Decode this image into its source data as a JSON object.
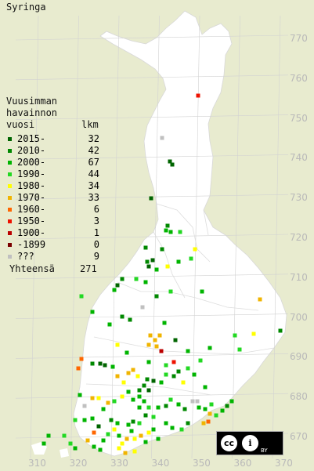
{
  "title": "Syringa",
  "legend": {
    "heading_line1": "Vuusimman",
    "heading_line2": "havainnon",
    "heading_col1": "vuosi",
    "heading_col2": "lkm",
    "rows": [
      {
        "label": "2015-",
        "count": "32",
        "color": "#006400"
      },
      {
        "label": "2010-",
        "count": "42",
        "color": "#008800"
      },
      {
        "label": "2000-",
        "count": "67",
        "color": "#00b400"
      },
      {
        "label": "1990-",
        "count": "44",
        "color": "#22d822"
      },
      {
        "label": "1980-",
        "count": "34",
        "color": "#ffff00"
      },
      {
        "label": "1970-",
        "count": "33",
        "color": "#f0b400"
      },
      {
        "label": "1960-",
        "count": "6",
        "color": "#ff6600"
      },
      {
        "label": "1950-",
        "count": "3",
        "color": "#ee1100"
      },
      {
        "label": "1900-",
        "count": "1",
        "color": "#bb0000"
      },
      {
        "label": "-1899",
        "count": "0",
        "color": "#7a0000"
      },
      {
        "label": "???",
        "count": "9",
        "color": "#c0c0c0"
      }
    ],
    "total_label": "Yhteensä",
    "total_count": "271"
  },
  "axis_right": [
    "770",
    "760",
    "750",
    "740",
    "730",
    "720",
    "710",
    "700",
    "690",
    "680",
    "670"
  ],
  "axis_bottom": [
    "310",
    "320",
    "330",
    "340",
    "350",
    "360",
    "370"
  ],
  "license": {
    "cc": "cc",
    "by_icon": "i",
    "by": "BY"
  },
  "colors": {
    "background": "#e8ebcf",
    "land": "#ffffff",
    "grid": "#d2d2d2",
    "coord_text": "#b9b9b9"
  }
}
